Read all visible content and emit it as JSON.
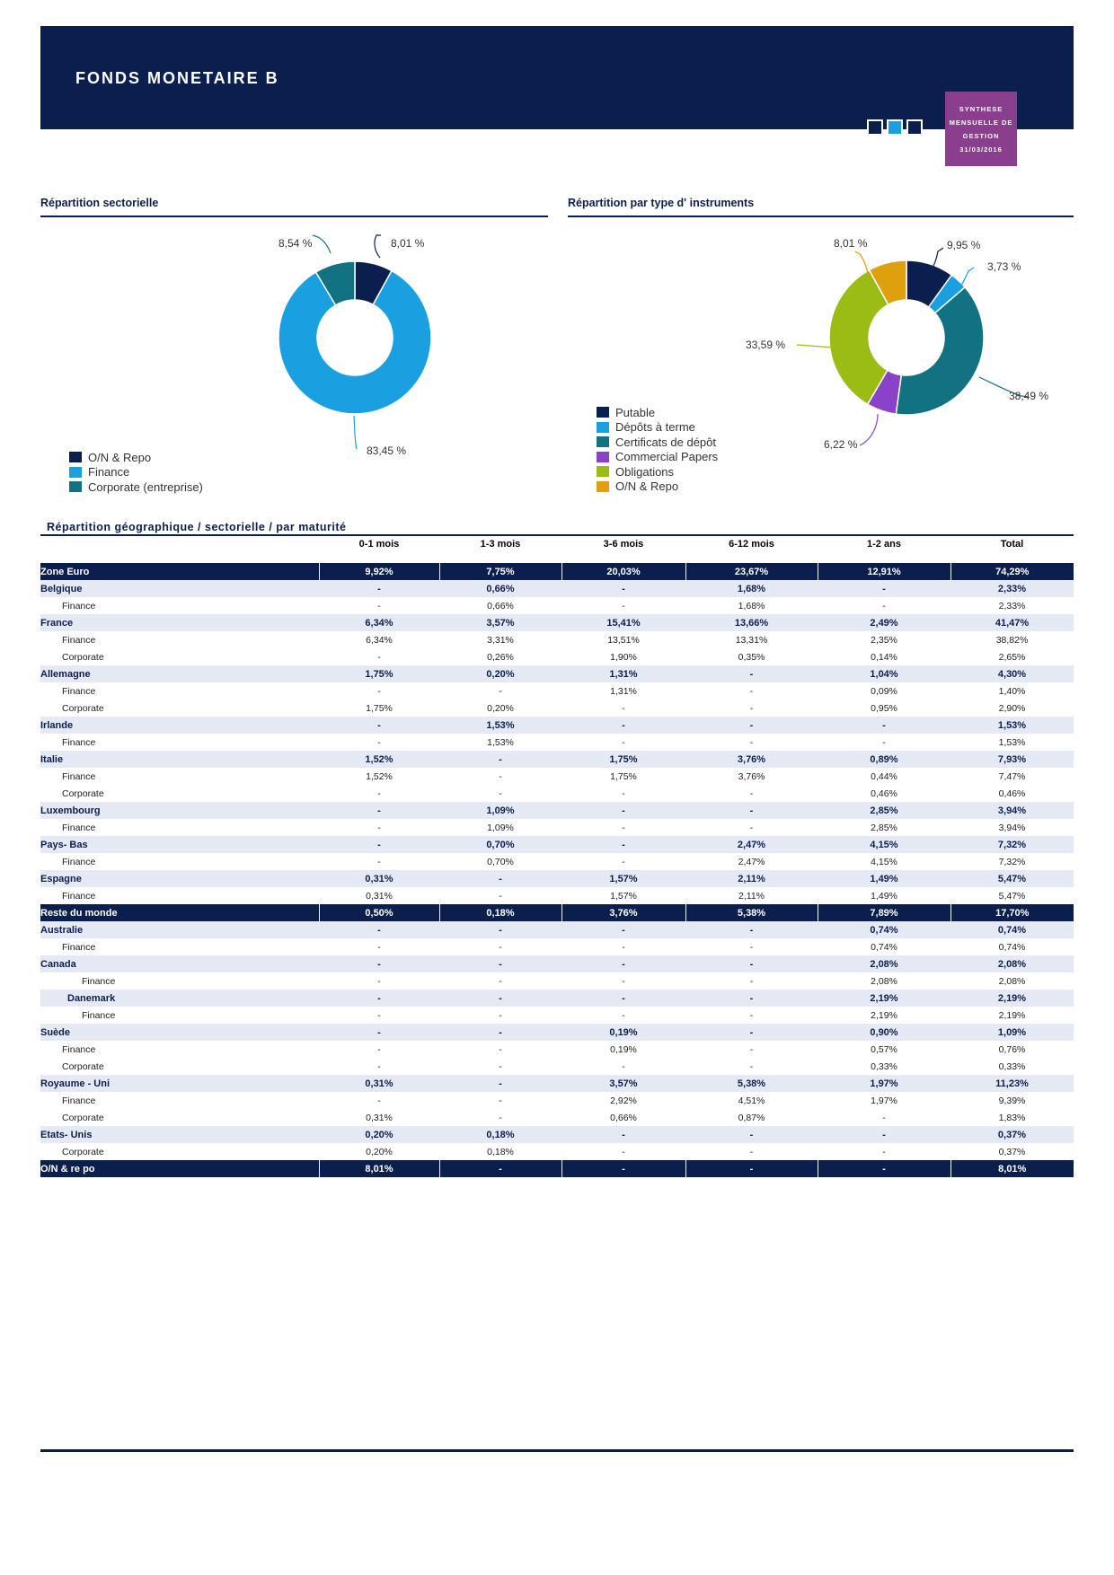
{
  "header": {
    "title": "FONDS MONETAIRE B",
    "badge": [
      "SYNTHESE",
      "MENSUELLE DE",
      "GESTION",
      "31/03/2016"
    ],
    "colors": {
      "navy": "#0b1f4f",
      "blue": "#1aa0e0",
      "purple": "#8a3e8e"
    }
  },
  "sectors": {
    "title": "Répartition sectorielle",
    "legend": [
      "O/N & Repo",
      "Finance",
      "Corporate (entreprise)"
    ],
    "labels": [
      "8,01 %",
      "83,45 %",
      "8,54 %"
    ]
  },
  "instruments": {
    "title": "Répartition  par type  d' instruments",
    "legend": [
      "Putable",
      "Dépôts à terme",
      "Certificats de dépôt",
      "Commercial Papers",
      "Obligations",
      "O/N & Repo"
    ],
    "labels": [
      "9,95 %",
      "3,73 %",
      "38,49 %",
      "6,22 %",
      "33,59 %",
      "8,01 %"
    ]
  },
  "chart_data": [
    {
      "type": "pie",
      "title": "Répartition sectorielle",
      "categories": [
        "O/N & Repo",
        "Finance",
        "Corporate (entreprise)"
      ],
      "values": [
        8.01,
        83.45,
        8.54
      ],
      "colors": [
        "#0b1f4f",
        "#1aa0e0",
        "#137282"
      ],
      "legend": "bottom-left"
    },
    {
      "type": "pie",
      "title": "Répartition  par type  d' instruments",
      "categories": [
        "Putable",
        "Dépôts à terme",
        "Certificats de dépôt",
        "Commercial Papers",
        "Obligations",
        "O/N & Repo"
      ],
      "values": [
        9.95,
        3.73,
        38.49,
        6.22,
        33.59,
        8.01
      ],
      "colors": [
        "#0b1f4f",
        "#1aa0e0",
        "#137282",
        "#8a42c8",
        "#9bbb15",
        "#e0a00e"
      ],
      "legend": "bottom-left"
    }
  ],
  "geo": {
    "title": "Répartition  géographique  /  sectorielle  /  par maturité",
    "columns": [
      "0-1 mois",
      "1-3 mois",
      "3-6 mois",
      "6-12 mois",
      "1-2 ans",
      "Total"
    ],
    "rows": [
      {
        "k": "region",
        "label": "Zone  Euro",
        "v": [
          "9,92%",
          "7,75%",
          "20,03%",
          "23,67%",
          "12,91%",
          "74,29%"
        ]
      },
      {
        "k": "country",
        "label": "Belgique",
        "v": [
          "-",
          "0,66%",
          "-",
          "1,68%",
          "-",
          "2,33%"
        ]
      },
      {
        "k": "sub",
        "label": "Finance",
        "v": [
          "-",
          "0,66%",
          "-",
          "1,68%",
          "-",
          "2,33%"
        ]
      },
      {
        "k": "country",
        "label": "France",
        "v": [
          "6,34%",
          "3,57%",
          "15,41%",
          "13,66%",
          "2,49%",
          "41,47%"
        ]
      },
      {
        "k": "sub",
        "label": "Finance",
        "v": [
          "6,34%",
          "3,31%",
          "13,51%",
          "13,31%",
          "2,35%",
          "38,82%"
        ]
      },
      {
        "k": "sub",
        "label": "Corporate",
        "v": [
          "-",
          "0,26%",
          "1,90%",
          "0,35%",
          "0,14%",
          "2,65%"
        ]
      },
      {
        "k": "country",
        "label": "Allemagne",
        "v": [
          "1,75%",
          "0,20%",
          "1,31%",
          "-",
          "1,04%",
          "4,30%"
        ]
      },
      {
        "k": "sub",
        "label": "Finance",
        "v": [
          "-",
          "-",
          "1,31%",
          "-",
          "0,09%",
          "1,40%"
        ]
      },
      {
        "k": "sub",
        "label": "Corporate",
        "v": [
          "1,75%",
          "0,20%",
          "-",
          "-",
          "0,95%",
          "2,90%"
        ]
      },
      {
        "k": "country",
        "label": "Irlande",
        "v": [
          "-",
          "1,53%",
          "-",
          "-",
          "-",
          "1,53%"
        ]
      },
      {
        "k": "sub",
        "label": "Finance",
        "v": [
          "-",
          "1,53%",
          "-",
          "-",
          "-",
          "1,53%"
        ]
      },
      {
        "k": "country",
        "label": "Italie",
        "v": [
          "1,52%",
          "-",
          "1,75%",
          "3,76%",
          "0,89%",
          "7,93%"
        ]
      },
      {
        "k": "sub",
        "label": "Finance",
        "v": [
          "1,52%",
          "-",
          "1,75%",
          "3,76%",
          "0,44%",
          "7,47%"
        ]
      },
      {
        "k": "sub",
        "label": "Corporate",
        "v": [
          "-",
          "-",
          "-",
          "-",
          "0,46%",
          "0,46%"
        ]
      },
      {
        "k": "country",
        "label": "Luxembourg",
        "v": [
          "-",
          "1,09%",
          "-",
          "-",
          "2,85%",
          "3,94%"
        ]
      },
      {
        "k": "sub",
        "label": "Finance",
        "v": [
          "-",
          "1,09%",
          "-",
          "-",
          "2,85%",
          "3,94%"
        ]
      },
      {
        "k": "country",
        "label": "Pays- Bas",
        "v": [
          "-",
          "0,70%",
          "-",
          "2,47%",
          "4,15%",
          "7,32%"
        ]
      },
      {
        "k": "sub",
        "label": "Finance",
        "v": [
          "-",
          "0,70%",
          "-",
          "2,47%",
          "4,15%",
          "7,32%"
        ]
      },
      {
        "k": "country",
        "label": "Espagne",
        "v": [
          "0,31%",
          "-",
          "1,57%",
          "2,11%",
          "1,49%",
          "5,47%"
        ]
      },
      {
        "k": "sub",
        "label": "Finance",
        "v": [
          "0,31%",
          "-",
          "1,57%",
          "2,11%",
          "1,49%",
          "5,47%"
        ]
      },
      {
        "k": "region",
        "label": "Reste du monde",
        "v": [
          "0,50%",
          "0,18%",
          "3,76%",
          "5,38%",
          "7,89%",
          "17,70%"
        ]
      },
      {
        "k": "country",
        "label": "Australie",
        "v": [
          "-",
          "-",
          "-",
          "-",
          "0,74%",
          "0,74%"
        ]
      },
      {
        "k": "sub",
        "label": "Finance",
        "v": [
          "-",
          "-",
          "-",
          "-",
          "0,74%",
          "0,74%"
        ]
      },
      {
        "k": "country",
        "label": "Canada",
        "v": [
          "-",
          "-",
          "-",
          "-",
          "2,08%",
          "2,08%"
        ]
      },
      {
        "k": "sub deep",
        "label": "Finance",
        "v": [
          "-",
          "-",
          "-",
          "-",
          "2,08%",
          "2,08%"
        ]
      },
      {
        "k": "country deep",
        "label": "Danemark",
        "v": [
          "-",
          "-",
          "-",
          "-",
          "2,19%",
          "2,19%"
        ]
      },
      {
        "k": "sub deep",
        "label": "Finance",
        "v": [
          "-",
          "-",
          "-",
          "-",
          "2,19%",
          "2,19%"
        ]
      },
      {
        "k": "country",
        "label": "Suède",
        "v": [
          "-",
          "-",
          "0,19%",
          "-",
          "0,90%",
          "1,09%"
        ]
      },
      {
        "k": "sub",
        "label": "Finance",
        "v": [
          "-",
          "-",
          "0,19%",
          "-",
          "0,57%",
          "0,76%"
        ]
      },
      {
        "k": "sub",
        "label": "Corporate",
        "v": [
          "-",
          "-",
          "-",
          "-",
          "0,33%",
          "0,33%"
        ]
      },
      {
        "k": "country",
        "label": "Royaume - Uni",
        "v": [
          "0,31%",
          "-",
          "3,57%",
          "5,38%",
          "1,97%",
          "11,23%"
        ]
      },
      {
        "k": "sub",
        "label": "Finance",
        "v": [
          "-",
          "-",
          "2,92%",
          "4,51%",
          "1,97%",
          "9,39%"
        ]
      },
      {
        "k": "sub",
        "label": "Corporate",
        "v": [
          "0,31%",
          "-",
          "0,66%",
          "0,87%",
          "-",
          "1,83%"
        ]
      },
      {
        "k": "country",
        "label": "Etats- Unis",
        "v": [
          "0,20%",
          "0,18%",
          "-",
          "-",
          "-",
          "0,37%"
        ]
      },
      {
        "k": "sub",
        "label": "Corporate",
        "v": [
          "0,20%",
          "0,18%",
          "-",
          "-",
          "-",
          "0,37%"
        ]
      },
      {
        "k": "region",
        "label": "O/N  &  re po",
        "v": [
          "8,01%",
          "-",
          "-",
          "-",
          "-",
          "8,01%"
        ]
      }
    ]
  }
}
